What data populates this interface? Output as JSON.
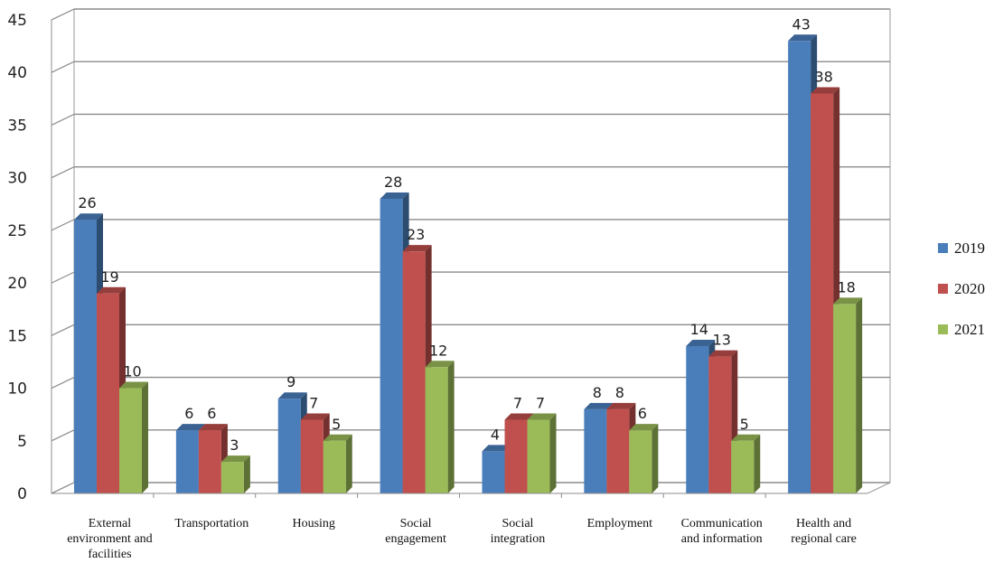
{
  "chart_data": {
    "type": "bar",
    "categories": [
      [
        "External",
        "environment and",
        "facilities"
      ],
      [
        "Transportation"
      ],
      [
        "Housing"
      ],
      [
        "Social",
        "engagement"
      ],
      [
        "Social",
        "integration"
      ],
      [
        "Employment"
      ],
      [
        "Communication",
        "and information"
      ],
      [
        "Health and",
        "regional care"
      ]
    ],
    "series": [
      {
        "name": "2019",
        "color": "#4a7ebb",
        "values": [
          26,
          6,
          9,
          28,
          4,
          8,
          14,
          43
        ]
      },
      {
        "name": "2020",
        "color": "#c0504d",
        "values": [
          19,
          6,
          7,
          23,
          7,
          8,
          13,
          38
        ]
      },
      {
        "name": "2021",
        "color": "#9bbb59",
        "values": [
          10,
          3,
          5,
          12,
          7,
          6,
          5,
          18
        ]
      }
    ],
    "ylim": [
      0,
      45
    ],
    "yticks": [
      0,
      5,
      10,
      15,
      20,
      25,
      30,
      35,
      40,
      45
    ],
    "grid": true,
    "legend": "right",
    "style": "3d-column"
  }
}
